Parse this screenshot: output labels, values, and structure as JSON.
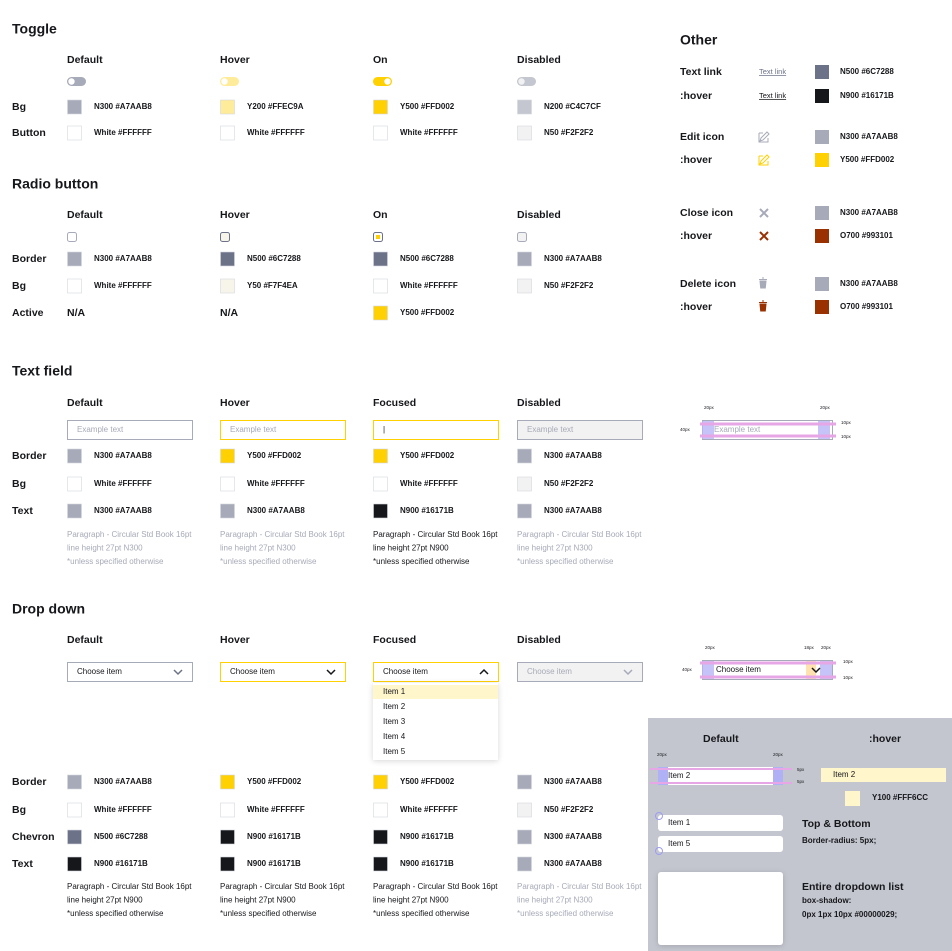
{
  "toggle": {
    "title": "Toggle",
    "columns": [
      "Default",
      "Hover",
      "On",
      "Disabled"
    ],
    "rows": [
      {
        "label": "Bg",
        "cells": [
          {
            "text": "N300 #A7AAB8",
            "swatch": "#A7AAB8"
          },
          {
            "text": "Y200 #FFEC9A",
            "swatch": "#FFEC9A"
          },
          {
            "text": "Y500 #FFD002",
            "swatch": "#FFD002"
          },
          {
            "text": "N200 #C4C7CF",
            "swatch": "#C4C7CF"
          }
        ]
      },
      {
        "label": "Button",
        "cells": [
          {
            "text": "White #FFFFFF",
            "swatch": "#FFFFFF"
          },
          {
            "text": "White #FFFFFF",
            "swatch": "#FFFFFF"
          },
          {
            "text": "White #FFFFFF",
            "swatch": "#FFFFFF"
          },
          {
            "text": "N50 #F2F2F2",
            "swatch": "#F2F2F2"
          }
        ]
      }
    ]
  },
  "radio": {
    "title": "Radio button",
    "columns": [
      "Default",
      "Hover",
      "On",
      "Disabled"
    ],
    "rows": [
      {
        "label": "Border",
        "cells": [
          {
            "text": "N300 #A7AAB8",
            "swatch": "#A7AAB8"
          },
          {
            "text": "N500 #6C7288",
            "swatch": "#6C7288"
          },
          {
            "text": "N500 #6C7288",
            "swatch": "#6C7288"
          },
          {
            "text": "N300 #A7AAB8",
            "swatch": "#A7AAB8"
          }
        ]
      },
      {
        "label": "Bg",
        "cells": [
          {
            "text": "White #FFFFFF",
            "swatch": "#FFFFFF"
          },
          {
            "text": "Y50 #F7F4EA",
            "swatch": "#F7F4EA"
          },
          {
            "text": "White #FFFFFF",
            "swatch": "#FFFFFF"
          },
          {
            "text": "N50 #F2F2F2",
            "swatch": "#F2F2F2"
          }
        ]
      },
      {
        "label": "Active",
        "cells": [
          {
            "text": "N/A"
          },
          {
            "text": "N/A"
          },
          {
            "text": "Y500 #FFD002",
            "swatch": "#FFD002"
          },
          null
        ]
      }
    ]
  },
  "text_field": {
    "title": "Text field",
    "columns": [
      "Default",
      "Hover",
      "Focused",
      "Disabled"
    ],
    "placeholders": [
      "Example text",
      "Example text",
      "|",
      "Example text"
    ],
    "rows": [
      {
        "label": "Border",
        "cells": [
          {
            "text": "N300 #A7AAB8",
            "swatch": "#A7AAB8"
          },
          {
            "text": "Y500 #FFD002",
            "swatch": "#FFD002"
          },
          {
            "text": "Y500 #FFD002",
            "swatch": "#FFD002"
          },
          {
            "text": "N300 #A7AAB8",
            "swatch": "#A7AAB8"
          }
        ]
      },
      {
        "label": "Bg",
        "cells": [
          {
            "text": "White #FFFFFF",
            "swatch": "#FFFFFF"
          },
          {
            "text": "White #FFFFFF",
            "swatch": "#FFFFFF"
          },
          {
            "text": "White #FFFFFF",
            "swatch": "#FFFFFF"
          },
          {
            "text": "N50 #F2F2F2",
            "swatch": "#F2F2F2"
          }
        ]
      },
      {
        "label": "Text",
        "cells": [
          {
            "text": "N300 #A7AAB8",
            "swatch": "#A7AAB8"
          },
          {
            "text": "N300 #A7AAB8",
            "swatch": "#A7AAB8"
          },
          {
            "text": "N900 #16171B",
            "swatch": "#16171B"
          },
          {
            "text": "N300 #A7AAB8",
            "swatch": "#A7AAB8"
          }
        ]
      }
    ],
    "notes": [
      [
        "Paragraph - Circular Std Book 16pt",
        "line height 27pt N300",
        "*unless specified otherwise"
      ],
      [
        "Paragraph - Circular Std Book 16pt",
        "line height 27pt N300",
        "*unless specified otherwise"
      ],
      [
        "Paragraph - Circular Std Book 16pt",
        "line height 27pt N900",
        "*unless specified otherwise"
      ],
      [
        "Paragraph - Circular Std Book 16pt",
        "line height 27pt N300",
        "*unless specified otherwise"
      ]
    ]
  },
  "drop_down": {
    "title": "Drop down",
    "columns": [
      "Default",
      "Hover",
      "Focused",
      "Disabled"
    ],
    "placeholders": [
      "Choose item",
      "Choose item",
      "Choose item",
      "Choose item"
    ],
    "items": [
      "Item 1",
      "Item 2",
      "Item 3",
      "Item 4",
      "Item 5"
    ],
    "rows": [
      {
        "label": "Border",
        "cells": [
          {
            "text": "N300 #A7AAB8",
            "swatch": "#A7AAB8"
          },
          {
            "text": "Y500 #FFD002",
            "swatch": "#FFD002"
          },
          {
            "text": "Y500 #FFD002",
            "swatch": "#FFD002"
          },
          {
            "text": "N300 #A7AAB8",
            "swatch": "#A7AAB8"
          }
        ]
      },
      {
        "label": "Bg",
        "cells": [
          {
            "text": "White #FFFFFF",
            "swatch": "#FFFFFF"
          },
          {
            "text": "White #FFFFFF",
            "swatch": "#FFFFFF"
          },
          {
            "text": "White #FFFFFF",
            "swatch": "#FFFFFF"
          },
          {
            "text": "N50 #F2F2F2",
            "swatch": "#F2F2F2"
          }
        ]
      },
      {
        "label": "Chevron",
        "cells": [
          {
            "text": "N500 #6C7288",
            "swatch": "#6C7288"
          },
          {
            "text": "N900 #16171B",
            "swatch": "#16171B"
          },
          {
            "text": "N900 #16171B",
            "swatch": "#16171B"
          },
          {
            "text": "N300 #A7AAB8",
            "swatch": "#A7AAB8"
          }
        ]
      },
      {
        "label": "Text",
        "cells": [
          {
            "text": "N900 #16171B",
            "swatch": "#16171B"
          },
          {
            "text": "N900 #16171B",
            "swatch": "#16171B"
          },
          {
            "text": "N900 #16171B",
            "swatch": "#16171B"
          },
          {
            "text": "N300 #A7AAB8",
            "swatch": "#A7AAB8"
          }
        ]
      }
    ],
    "notes": [
      [
        "Paragraph - Circular Std Book 16pt",
        "line height 27pt N900",
        "*unless specified otherwise"
      ],
      [
        "Paragraph - Circular Std Book 16pt",
        "line height 27pt N900",
        "*unless specified otherwise"
      ],
      [
        "Paragraph - Circular Std Book 16pt",
        "line height 27pt N900",
        "*unless specified otherwise"
      ],
      [
        "Paragraph - Circular Std Book 16pt",
        "line height 27pt N300",
        "*unless specified otherwise"
      ]
    ]
  },
  "other": {
    "title": "Other",
    "rows": [
      {
        "label": "Text link",
        "preview": "Text link",
        "text": "N500 #6C7288",
        "swatch": "#6C7288"
      },
      {
        "label": ":hover",
        "preview": "Text link",
        "text": "N900 #16171B",
        "swatch": "#16171B"
      },
      {
        "label": "Edit icon",
        "text": "N300 #A7AAB8",
        "swatch": "#A7AAB8"
      },
      {
        "label": ":hover",
        "text": "Y500 #FFD002",
        "swatch": "#FFD002"
      },
      {
        "label": "Close icon",
        "text": "N300 #A7AAB8",
        "swatch": "#A7AAB8"
      },
      {
        "label": ":hover",
        "text": "O700 #993101",
        "swatch": "#993101"
      },
      {
        "label": "Delete icon",
        "text": "N300 #A7AAB8",
        "swatch": "#A7AAB8"
      },
      {
        "label": ":hover",
        "text": "O700 #993101",
        "swatch": "#993101"
      }
    ]
  },
  "text_field_spec": {
    "placeholder": "Example text",
    "dims": [
      "20px",
      "20px",
      "40px",
      "10px",
      "10px"
    ]
  },
  "drop_down_spec": {
    "placeholder": "Choose item",
    "dims": [
      "20px",
      "18px",
      "20px",
      "40px",
      "10px",
      "10px"
    ]
  },
  "list_spec": {
    "columns": [
      "Default",
      ":hover"
    ],
    "item": "Item 2",
    "hover_item": "Item 2",
    "dims": [
      "20px",
      "20px",
      "5px",
      "5px"
    ],
    "swatch_text": "Y100 #FFF6CC",
    "swatch": "#FFF6CC",
    "items": [
      "Item 1",
      "Item 5"
    ],
    "notes": [
      [
        "Top & Bottom",
        "Border-radius: 5px;"
      ],
      [
        "Entire dropdown list",
        "box-shadow:",
        "0px 1px 10px #00000029;"
      ]
    ]
  }
}
